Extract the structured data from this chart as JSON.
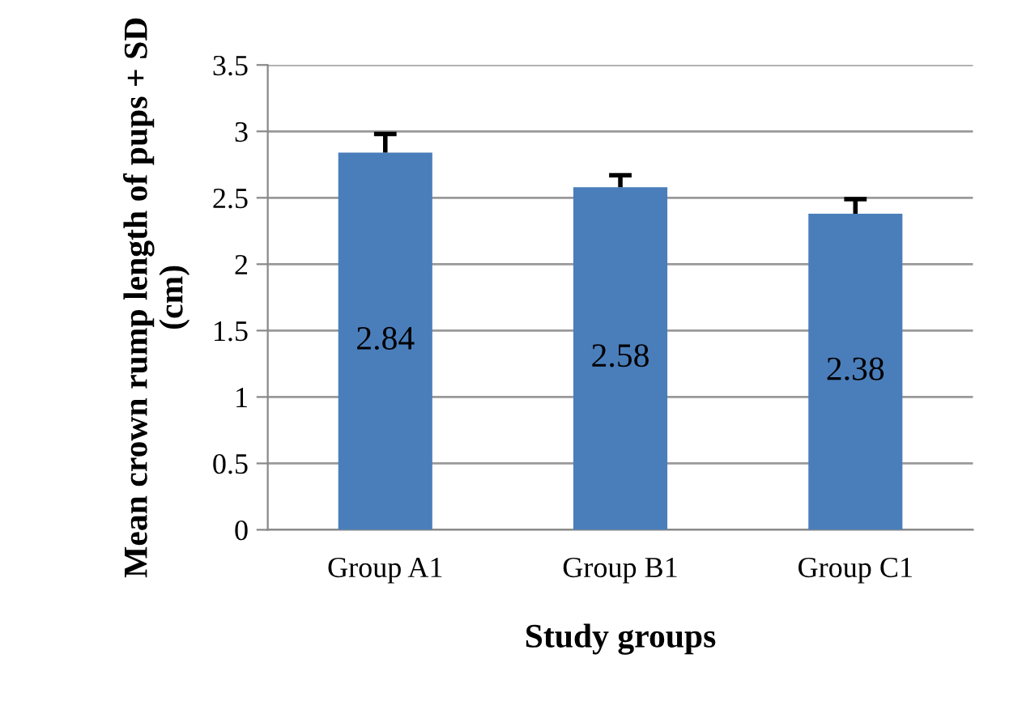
{
  "chart_data": {
    "type": "bar",
    "categories": [
      "Group A1",
      "Group B1",
      "Group C1"
    ],
    "values": [
      2.84,
      2.58,
      2.38
    ],
    "errors": [
      [
        2.84,
        2.98
      ],
      [
        2.58,
        2.67
      ],
      [
        2.38,
        2.49
      ]
    ],
    "color": "#4a7ebb",
    "xlabel": "Study groups",
    "ylabel": "Mean crown rump length of pups + SD (cm)",
    "ylim": [
      0,
      3.5
    ],
    "yticks": [
      0,
      0.5,
      1,
      1.5,
      2,
      2.5,
      3,
      3.5
    ],
    "grid": "y",
    "data_labels": true
  }
}
